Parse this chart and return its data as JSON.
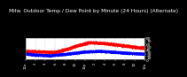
{
  "title": "Milw. Outdoor Temp / Dew Point by Minute (24 Hours) (Alternate)",
  "title_fontsize": 4.2,
  "bg_color": "#000000",
  "plot_bg_color": "#ffffff",
  "grid_color": "#888888",
  "temp_color": "#ff0000",
  "dew_color": "#0000ff",
  "ylim": [
    0,
    80
  ],
  "xlim": [
    0,
    1440
  ],
  "ylabel_fontsize": 3.2,
  "xlabel_fontsize": 2.8,
  "n_points": 1440,
  "ytick_vals": [
    0,
    10,
    20,
    30,
    40,
    50,
    60,
    70,
    80
  ],
  "ytick_labels": [
    "0",
    "1",
    "2",
    "3",
    "4",
    "5",
    "6",
    "7",
    "8"
  ],
  "xtick_positions": [
    0,
    120,
    240,
    360,
    480,
    600,
    720,
    840,
    960,
    1080,
    1200,
    1320,
    1440
  ],
  "xtick_labels": [
    "12a",
    "2",
    "4",
    "6",
    "8",
    "10",
    "12p",
    "2",
    "4",
    "6",
    "8",
    "10",
    "12a"
  ]
}
